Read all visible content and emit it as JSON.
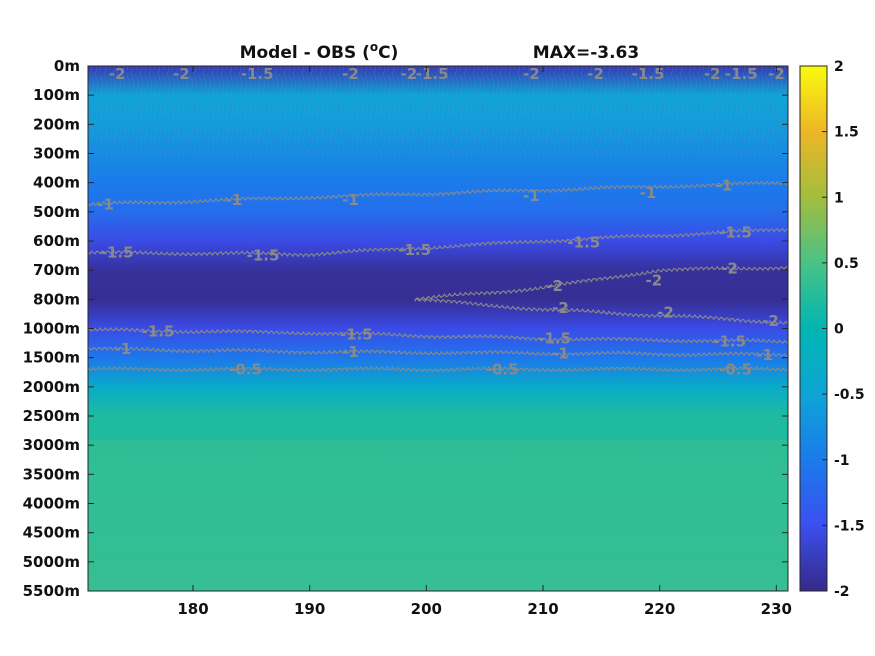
{
  "chart_data": {
    "type": "heatmap",
    "title": "Model - OBS (°C)",
    "title_parts": {
      "before": "Model - OBS (",
      "superscript": "o",
      "after": "C)"
    },
    "annotation": "MAX=-3.63",
    "x_ticks": [
      180,
      190,
      200,
      210,
      220,
      230
    ],
    "xlim": [
      171,
      231
    ],
    "y_tick_labels": [
      "0m",
      "100m",
      "200m",
      "300m",
      "400m",
      "500m",
      "600m",
      "700m",
      "800m",
      "1000m",
      "1500m",
      "2000m",
      "2500m",
      "3000m",
      "3500m",
      "4000m",
      "4500m",
      "5000m",
      "5500m"
    ],
    "y_axis_reversed": true,
    "colorbar": {
      "colormap": "parula",
      "clim": [
        -2,
        2
      ],
      "ticks": [
        2,
        1.5,
        1,
        0.5,
        0,
        -0.5,
        -1,
        -1.5,
        -2
      ],
      "tick_labels": [
        "2",
        "1.5",
        "1",
        "0.5",
        "0",
        "-0.5",
        "-1",
        "-1.5",
        "-2"
      ],
      "position": "right"
    },
    "contour_color": "#8a8a8a",
    "field_profile": [
      {
        "depth_index": 0,
        "value": -1.8
      },
      {
        "depth_index": 1,
        "value": -0.5
      },
      {
        "depth_index": 2,
        "value": -0.6
      },
      {
        "depth_index": 3,
        "value": -0.8
      },
      {
        "depth_index": 4,
        "value": -1.0
      },
      {
        "depth_index": 5,
        "value": -1.15
      },
      {
        "depth_index": 6,
        "value": -1.55
      },
      {
        "depth_index": 7,
        "value": -1.9
      },
      {
        "depth_index": 8,
        "value": -1.95
      },
      {
        "depth_index": 9,
        "value": -1.55
      },
      {
        "depth_index": 10,
        "value": -1.05
      },
      {
        "depth_index": 11,
        "value": -0.3
      },
      {
        "depth_index": 12,
        "value": 0.2
      },
      {
        "depth_index": 18,
        "value": 0.3
      }
    ],
    "contours": [
      {
        "level": -1,
        "label": "-1",
        "depth_index": [
          4.75,
          4.5,
          4.25,
          4.0
        ],
        "x": [
          171,
          190,
          210,
          231
        ]
      },
      {
        "level": -1.5,
        "label": "-1.5",
        "depth_index": [
          6.4,
          6.45,
          6.0,
          5.6
        ],
        "x": [
          171,
          190,
          210,
          231
        ]
      },
      {
        "level": -2,
        "label": "-2",
        "depth_index": [
          8.0,
          7.6,
          7.0,
          6.9
        ],
        "x": [
          199,
          210,
          220,
          231
        ]
      },
      {
        "level": -2,
        "label": "-2",
        "depth_index": [
          8.0,
          8.35,
          8.55,
          8.8
        ],
        "x": [
          199,
          210,
          220,
          231
        ]
      },
      {
        "level": -1.5,
        "label": "-1.5",
        "depth_index": [
          9.05,
          9.15,
          9.35,
          9.45
        ],
        "x": [
          171,
          190,
          210,
          231
        ]
      },
      {
        "level": -1,
        "label": "-1",
        "depth_index": [
          9.7,
          9.8,
          9.85,
          9.9
        ],
        "x": [
          171,
          190,
          210,
          231
        ]
      },
      {
        "level": -0.5,
        "label": "-0.5",
        "depth_index": [
          10.4,
          10.4,
          10.4,
          10.4
        ],
        "x": [
          171,
          190,
          210,
          231
        ]
      }
    ],
    "contour_labels": [
      {
        "text": "-1",
        "x": 172.5,
        "depth_index": 4.75
      },
      {
        "text": "-1",
        "x": 183.5,
        "depth_index": 4.6
      },
      {
        "text": "-1",
        "x": 193.5,
        "depth_index": 4.6
      },
      {
        "text": "-1",
        "x": 209.0,
        "depth_index": 4.45
      },
      {
        "text": "-1",
        "x": 219.0,
        "depth_index": 4.35
      },
      {
        "text": "-1",
        "x": 225.5,
        "depth_index": 4.1
      },
      {
        "text": "-1.5",
        "x": 173.5,
        "depth_index": 6.4
      },
      {
        "text": "-1.5",
        "x": 186.0,
        "depth_index": 6.5
      },
      {
        "text": "-1.5",
        "x": 199.0,
        "depth_index": 6.3
      },
      {
        "text": "-1.5",
        "x": 213.5,
        "depth_index": 6.05
      },
      {
        "text": "-1.5",
        "x": 226.5,
        "depth_index": 5.7
      },
      {
        "text": "-2",
        "x": 211.0,
        "depth_index": 7.55
      },
      {
        "text": "-2",
        "x": 219.5,
        "depth_index": 7.35
      },
      {
        "text": "-2",
        "x": 226.0,
        "depth_index": 6.95
      },
      {
        "text": "-2",
        "x": 211.5,
        "depth_index": 8.3
      },
      {
        "text": "-2",
        "x": 220.5,
        "depth_index": 8.45
      },
      {
        "text": "-2",
        "x": 229.5,
        "depth_index": 8.75
      },
      {
        "text": "-1.5",
        "x": 177.0,
        "depth_index": 9.1
      },
      {
        "text": "-1.5",
        "x": 194.0,
        "depth_index": 9.2
      },
      {
        "text": "-1.5",
        "x": 211.0,
        "depth_index": 9.35
      },
      {
        "text": "-1.5",
        "x": 226.0,
        "depth_index": 9.45
      },
      {
        "text": "-1",
        "x": 174.0,
        "depth_index": 9.7
      },
      {
        "text": "-1",
        "x": 193.5,
        "depth_index": 9.8
      },
      {
        "text": "-1",
        "x": 211.5,
        "depth_index": 9.85
      },
      {
        "text": "-1",
        "x": 229.0,
        "depth_index": 9.9
      },
      {
        "text": "-0.5",
        "x": 184.5,
        "depth_index": 10.4
      },
      {
        "text": "-0.5",
        "x": 206.5,
        "depth_index": 10.4
      },
      {
        "text": "-0.5",
        "x": 226.5,
        "depth_index": 10.4
      }
    ],
    "surface_labels": [
      {
        "text": "-2",
        "x": 173.5
      },
      {
        "text": "-2",
        "x": 179.0
      },
      {
        "text": "-1.5",
        "x": 185.5
      },
      {
        "text": "-2",
        "x": 193.5
      },
      {
        "text": "-2",
        "x": 198.5
      },
      {
        "text": "-1.5",
        "x": 200.5
      },
      {
        "text": "-2",
        "x": 209.0
      },
      {
        "text": "-2",
        "x": 214.5
      },
      {
        "text": "-1.5",
        "x": 219.0
      },
      {
        "text": "-2",
        "x": 224.5
      },
      {
        "text": "-1.5",
        "x": 227.0
      },
      {
        "text": "-2",
        "x": 230.0
      }
    ]
  }
}
